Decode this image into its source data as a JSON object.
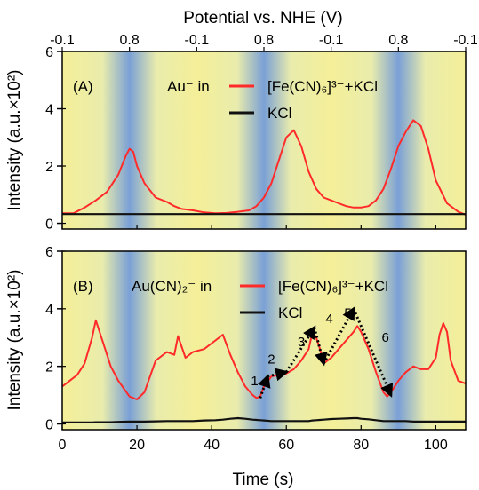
{
  "chart_data": [
    {
      "type": "line",
      "panel_label": "(A)",
      "legend_prefix": "Au⁻ in",
      "x": [
        0,
        3,
        6,
        9,
        12,
        15,
        17,
        18,
        19,
        20,
        22,
        25,
        28,
        30,
        32,
        35,
        38,
        41,
        44,
        47,
        50,
        52,
        54,
        56,
        58,
        60,
        62,
        64,
        66,
        68,
        70,
        72,
        74,
        76,
        78,
        80,
        82,
        84,
        86,
        88,
        90,
        92,
        94,
        96,
        98,
        100,
        103,
        106,
        108
      ],
      "series": [
        {
          "name": "[Fe(CN)₆]³⁻+KCl",
          "color": "#ff2a2a",
          "values": [
            0.35,
            0.35,
            0.55,
            0.8,
            1.1,
            1.7,
            2.35,
            2.6,
            2.5,
            2.0,
            1.4,
            0.9,
            0.75,
            0.6,
            0.5,
            0.45,
            0.38,
            0.35,
            0.36,
            0.4,
            0.45,
            0.6,
            0.9,
            1.4,
            2.2,
            3.0,
            3.25,
            2.7,
            1.8,
            1.2,
            0.9,
            0.8,
            0.7,
            0.6,
            0.55,
            0.55,
            0.6,
            0.8,
            1.2,
            1.9,
            2.7,
            3.2,
            3.6,
            3.4,
            2.6,
            1.5,
            0.7,
            0.4,
            0.3
          ]
        },
        {
          "name": "KCl",
          "color": "#111111",
          "values": [
            0.32,
            0.32,
            0.32,
            0.32,
            0.32,
            0.32,
            0.32,
            0.32,
            0.32,
            0.32,
            0.32,
            0.32,
            0.32,
            0.32,
            0.32,
            0.32,
            0.32,
            0.32,
            0.32,
            0.32,
            0.32,
            0.32,
            0.32,
            0.32,
            0.32,
            0.32,
            0.32,
            0.32,
            0.32,
            0.32,
            0.32,
            0.32,
            0.32,
            0.32,
            0.32,
            0.32,
            0.32,
            0.32,
            0.32,
            0.32,
            0.32,
            0.32,
            0.32,
            0.32,
            0.32,
            0.32,
            0.32,
            0.32,
            0.32
          ]
        }
      ]
    },
    {
      "type": "line",
      "panel_label": "(B)",
      "legend_prefix": "Au(CN)₂⁻ in",
      "x": [
        0,
        2,
        4,
        6,
        8,
        9,
        11,
        13,
        15,
        18,
        20,
        22,
        25,
        28,
        30,
        31,
        33,
        35,
        38,
        41,
        43,
        45,
        47,
        49,
        51,
        52,
        53,
        54,
        56,
        58,
        60,
        62,
        64,
        66,
        67,
        68,
        69,
        70,
        72,
        74,
        76,
        78,
        79,
        80,
        82,
        84,
        86,
        87,
        88,
        90,
        92,
        94,
        96,
        98,
        100,
        101,
        102,
        103,
        104,
        106,
        108
      ],
      "series": [
        {
          "name": "[Fe(CN)₆]³⁻+KCl",
          "color": "#ff2a2a",
          "values": [
            1.3,
            1.5,
            1.7,
            2.1,
            3.0,
            3.6,
            2.8,
            2.0,
            1.5,
            0.95,
            0.85,
            1.1,
            2.2,
            2.5,
            2.4,
            3.05,
            2.3,
            2.5,
            2.6,
            2.9,
            3.1,
            2.4,
            1.8,
            1.3,
            1.0,
            0.9,
            0.95,
            1.3,
            1.65,
            1.7,
            1.75,
            1.9,
            2.2,
            2.6,
            3.2,
            3.0,
            2.6,
            2.1,
            2.3,
            2.6,
            2.9,
            3.2,
            3.4,
            3.2,
            2.6,
            1.8,
            1.1,
            0.95,
            1.1,
            1.5,
            1.8,
            2.0,
            1.9,
            1.9,
            2.3,
            3.1,
            3.5,
            3.2,
            2.2,
            1.5,
            1.4
          ]
        },
        {
          "name": "KCl",
          "color": "#111111",
          "values": [
            0.05,
            0.05,
            0.05,
            0.05,
            0.05,
            0.06,
            0.06,
            0.06,
            0.07,
            0.08,
            0.08,
            0.08,
            0.09,
            0.1,
            0.1,
            0.1,
            0.1,
            0.1,
            0.12,
            0.13,
            0.15,
            0.18,
            0.2,
            0.18,
            0.15,
            0.14,
            0.13,
            0.12,
            0.1,
            0.1,
            0.1,
            0.1,
            0.1,
            0.1,
            0.12,
            0.13,
            0.14,
            0.15,
            0.17,
            0.18,
            0.19,
            0.2,
            0.2,
            0.18,
            0.16,
            0.13,
            0.1,
            0.1,
            0.1,
            0.1,
            0.1,
            0.08,
            0.08,
            0.08,
            0.08,
            0.08,
            0.08,
            0.08,
            0.08,
            0.08,
            0.08
          ]
        }
      ],
      "annotations": [
        {
          "label": "1",
          "x": 51.5,
          "y": 1.35
        },
        {
          "label": "2",
          "x": 56,
          "y": 2.1
        },
        {
          "label": "3",
          "x": 64,
          "y": 2.7
        },
        {
          "label": "4",
          "x": 71.5,
          "y": 3.5
        },
        {
          "label": "5",
          "x": 76.5,
          "y": 3.7
        },
        {
          "label": "6",
          "x": 86.5,
          "y": 2.85
        }
      ],
      "arrows": [
        {
          "from": [
            53,
            0.9
          ],
          "to": [
            55,
            1.65
          ]
        },
        {
          "from": [
            55,
            1.65
          ],
          "to": [
            60,
            1.8
          ]
        },
        {
          "from": [
            60,
            1.8
          ],
          "to": [
            67.5,
            3.35
          ]
        },
        {
          "from": [
            67.5,
            3.35
          ],
          "to": [
            70,
            2.1
          ]
        },
        {
          "from": [
            70,
            2.1
          ],
          "to": [
            78,
            4.0
          ]
        },
        {
          "from": [
            78,
            4.0
          ],
          "to": [
            88,
            1.0
          ]
        }
      ]
    }
  ],
  "axes": {
    "xlabel": "Time (s)",
    "top_xlabel": "Potential vs. NHE (V)",
    "ylabel": "Intensity (a.u.×10²)",
    "xlim": [
      0,
      108
    ],
    "ylim": [
      -0.2,
      6.0
    ],
    "x_ticks": [
      0,
      20,
      40,
      60,
      80,
      100
    ],
    "y_ticks": [
      0,
      2,
      4,
      6
    ],
    "top_ticks": [
      {
        "x": 0,
        "label": "-0.1"
      },
      {
        "x": 18,
        "label": "0.8"
      },
      {
        "x": 36,
        "label": "-0.1"
      },
      {
        "x": 54,
        "label": "0.8"
      },
      {
        "x": 72,
        "label": "-0.1"
      },
      {
        "x": 90,
        "label": "0.8"
      },
      {
        "x": 108,
        "label": "-0.1"
      }
    ],
    "background_gradient": {
      "yellow": "#f3ef9b",
      "blue": "#7aa0d6",
      "period_s": 36,
      "blue_center_s": 18
    }
  }
}
